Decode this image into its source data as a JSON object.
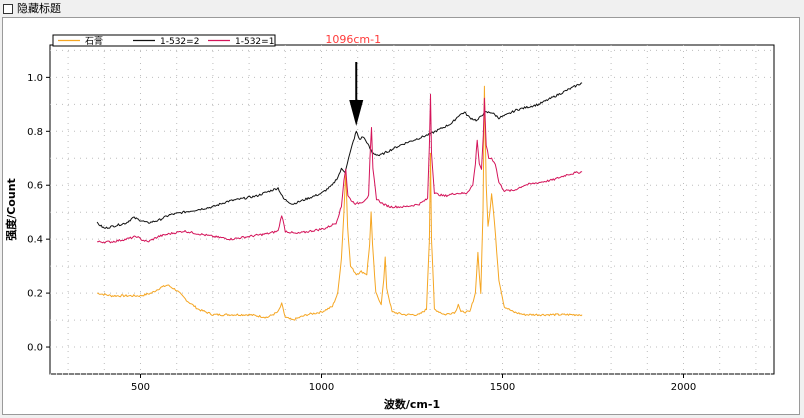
{
  "header": {
    "hide_title_label": "隐藏标题"
  },
  "chart_data": {
    "type": "line",
    "title": "",
    "xlabel": "波数/cm-1",
    "ylabel": "强度/Count",
    "xlim": [
      250,
      2250
    ],
    "ylim": [
      -0.1,
      1.12
    ],
    "xticks": [
      "500",
      "1000",
      "1500",
      "2000"
    ],
    "yticks": [
      "0.0",
      "0.2",
      "0.4",
      "0.6",
      "0.8",
      "1.0"
    ],
    "grid": true,
    "legend": {
      "placement": "top-left",
      "entries": [
        "石膏",
        "1-532=2",
        "1-532=1"
      ]
    },
    "annotation": {
      "text": "1096cm-1",
      "x": 1096,
      "color": "#ff3b3b"
    },
    "series": [
      {
        "name": "石膏",
        "color": "#f5a623",
        "points": [
          [
            380,
            0.2
          ],
          [
            420,
            0.19
          ],
          [
            460,
            0.19
          ],
          [
            500,
            0.19
          ],
          [
            530,
            0.2
          ],
          [
            555,
            0.22
          ],
          [
            575,
            0.23
          ],
          [
            600,
            0.21
          ],
          [
            630,
            0.17
          ],
          [
            660,
            0.14
          ],
          [
            700,
            0.12
          ],
          [
            750,
            0.12
          ],
          [
            800,
            0.12
          ],
          [
            850,
            0.11
          ],
          [
            880,
            0.13
          ],
          [
            890,
            0.16
          ],
          [
            900,
            0.11
          ],
          [
            920,
            0.1
          ],
          [
            960,
            0.12
          ],
          [
            1000,
            0.13
          ],
          [
            1030,
            0.15
          ],
          [
            1045,
            0.2
          ],
          [
            1055,
            0.33
          ],
          [
            1062,
            0.5
          ],
          [
            1067,
            0.65
          ],
          [
            1072,
            0.45
          ],
          [
            1080,
            0.3
          ],
          [
            1096,
            0.27
          ],
          [
            1110,
            0.28
          ],
          [
            1125,
            0.27
          ],
          [
            1133,
            0.38
          ],
          [
            1137,
            0.5
          ],
          [
            1141,
            0.38
          ],
          [
            1150,
            0.2
          ],
          [
            1165,
            0.16
          ],
          [
            1172,
            0.25
          ],
          [
            1176,
            0.33
          ],
          [
            1180,
            0.22
          ],
          [
            1195,
            0.13
          ],
          [
            1230,
            0.12
          ],
          [
            1270,
            0.12
          ],
          [
            1290,
            0.14
          ],
          [
            1298,
            0.4
          ],
          [
            1301,
            0.72
          ],
          [
            1304,
            0.4
          ],
          [
            1312,
            0.14
          ],
          [
            1340,
            0.12
          ],
          [
            1370,
            0.13
          ],
          [
            1378,
            0.16
          ],
          [
            1385,
            0.13
          ],
          [
            1410,
            0.13
          ],
          [
            1425,
            0.2
          ],
          [
            1432,
            0.35
          ],
          [
            1436,
            0.27
          ],
          [
            1440,
            0.2
          ],
          [
            1446,
            0.5
          ],
          [
            1450,
            0.97
          ],
          [
            1455,
            0.6
          ],
          [
            1460,
            0.45
          ],
          [
            1465,
            0.5
          ],
          [
            1470,
            0.57
          ],
          [
            1478,
            0.46
          ],
          [
            1490,
            0.25
          ],
          [
            1505,
            0.15
          ],
          [
            1530,
            0.13
          ],
          [
            1560,
            0.12
          ],
          [
            1600,
            0.12
          ],
          [
            1650,
            0.12
          ],
          [
            1700,
            0.12
          ],
          [
            1720,
            0.12
          ]
        ]
      },
      {
        "name": "1-532=2",
        "color": "#111111",
        "points": [
          [
            380,
            0.46
          ],
          [
            400,
            0.44
          ],
          [
            430,
            0.45
          ],
          [
            460,
            0.46
          ],
          [
            480,
            0.48
          ],
          [
            500,
            0.47
          ],
          [
            520,
            0.46
          ],
          [
            550,
            0.47
          ],
          [
            580,
            0.49
          ],
          [
            620,
            0.5
          ],
          [
            660,
            0.51
          ],
          [
            700,
            0.52
          ],
          [
            740,
            0.54
          ],
          [
            780,
            0.55
          ],
          [
            820,
            0.56
          ],
          [
            860,
            0.58
          ],
          [
            880,
            0.59
          ],
          [
            895,
            0.55
          ],
          [
            920,
            0.53
          ],
          [
            960,
            0.55
          ],
          [
            1000,
            0.57
          ],
          [
            1030,
            0.6
          ],
          [
            1045,
            0.63
          ],
          [
            1055,
            0.66
          ],
          [
            1065,
            0.65
          ],
          [
            1075,
            0.7
          ],
          [
            1085,
            0.75
          ],
          [
            1096,
            0.8
          ],
          [
            1105,
            0.77
          ],
          [
            1115,
            0.78
          ],
          [
            1125,
            0.76
          ],
          [
            1140,
            0.72
          ],
          [
            1160,
            0.71
          ],
          [
            1190,
            0.73
          ],
          [
            1220,
            0.75
          ],
          [
            1260,
            0.77
          ],
          [
            1300,
            0.79
          ],
          [
            1330,
            0.81
          ],
          [
            1360,
            0.83
          ],
          [
            1380,
            0.86
          ],
          [
            1395,
            0.87
          ],
          [
            1410,
            0.85
          ],
          [
            1430,
            0.84
          ],
          [
            1450,
            0.87
          ],
          [
            1470,
            0.87
          ],
          [
            1490,
            0.85
          ],
          [
            1510,
            0.86
          ],
          [
            1540,
            0.88
          ],
          [
            1570,
            0.89
          ],
          [
            1600,
            0.9
          ],
          [
            1630,
            0.92
          ],
          [
            1660,
            0.94
          ],
          [
            1690,
            0.96
          ],
          [
            1720,
            0.98
          ]
        ]
      },
      {
        "name": "1-532=1",
        "color": "#d4145a",
        "points": [
          [
            380,
            0.39
          ],
          [
            420,
            0.39
          ],
          [
            460,
            0.4
          ],
          [
            490,
            0.41
          ],
          [
            500,
            0.4
          ],
          [
            520,
            0.39
          ],
          [
            550,
            0.41
          ],
          [
            580,
            0.42
          ],
          [
            620,
            0.43
          ],
          [
            660,
            0.42
          ],
          [
            700,
            0.41
          ],
          [
            750,
            0.4
          ],
          [
            800,
            0.41
          ],
          [
            850,
            0.42
          ],
          [
            880,
            0.43
          ],
          [
            890,
            0.49
          ],
          [
            900,
            0.43
          ],
          [
            930,
            0.42
          ],
          [
            970,
            0.43
          ],
          [
            1010,
            0.44
          ],
          [
            1040,
            0.46
          ],
          [
            1055,
            0.52
          ],
          [
            1062,
            0.62
          ],
          [
            1067,
            0.66
          ],
          [
            1073,
            0.56
          ],
          [
            1085,
            0.54
          ],
          [
            1096,
            0.53
          ],
          [
            1115,
            0.54
          ],
          [
            1130,
            0.56
          ],
          [
            1134,
            0.7
          ],
          [
            1138,
            0.81
          ],
          [
            1142,
            0.66
          ],
          [
            1152,
            0.55
          ],
          [
            1170,
            0.53
          ],
          [
            1190,
            0.52
          ],
          [
            1230,
            0.52
          ],
          [
            1270,
            0.53
          ],
          [
            1293,
            0.55
          ],
          [
            1298,
            0.75
          ],
          [
            1301,
            0.94
          ],
          [
            1304,
            0.72
          ],
          [
            1312,
            0.57
          ],
          [
            1340,
            0.56
          ],
          [
            1370,
            0.57
          ],
          [
            1400,
            0.57
          ],
          [
            1418,
            0.6
          ],
          [
            1425,
            0.68
          ],
          [
            1430,
            0.77
          ],
          [
            1436,
            0.68
          ],
          [
            1442,
            0.66
          ],
          [
            1447,
            0.78
          ],
          [
            1450,
            0.92
          ],
          [
            1455,
            0.75
          ],
          [
            1462,
            0.7
          ],
          [
            1470,
            0.7
          ],
          [
            1480,
            0.68
          ],
          [
            1490,
            0.61
          ],
          [
            1505,
            0.58
          ],
          [
            1530,
            0.58
          ],
          [
            1560,
            0.6
          ],
          [
            1600,
            0.61
          ],
          [
            1640,
            0.62
          ],
          [
            1680,
            0.64
          ],
          [
            1720,
            0.65
          ]
        ]
      }
    ]
  }
}
